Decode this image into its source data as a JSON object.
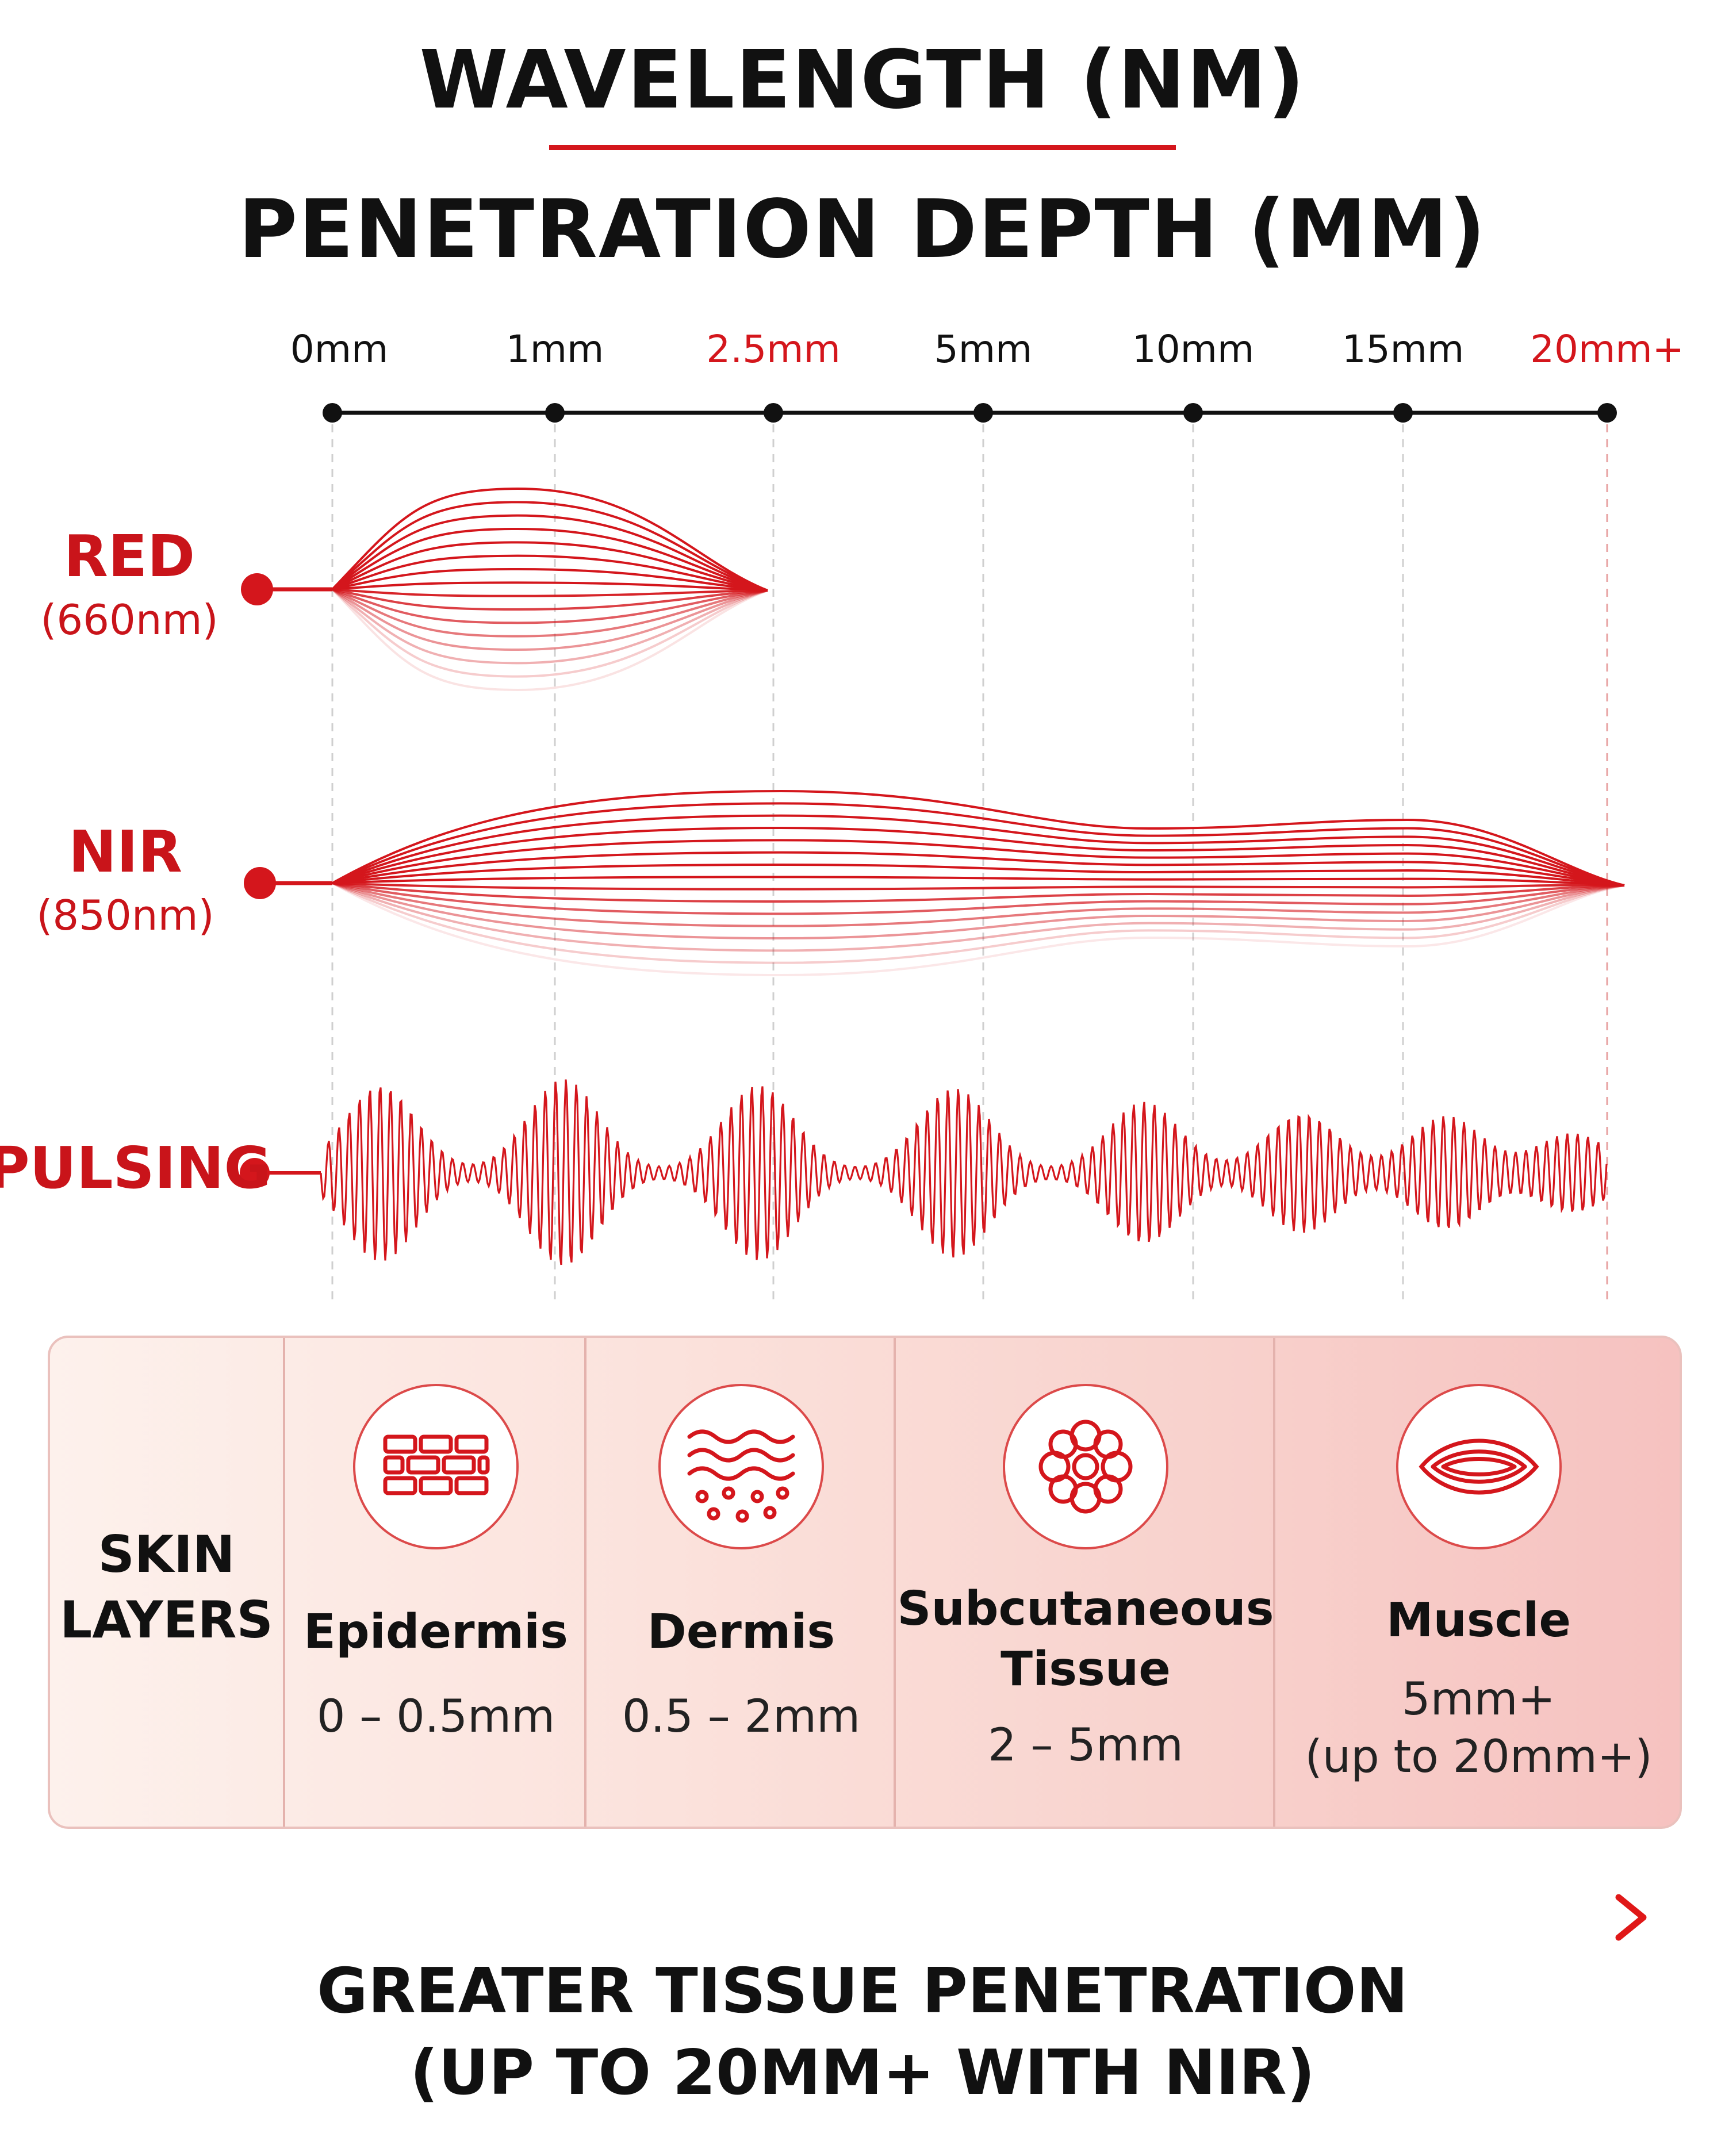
{
  "header": {
    "title": "WAVELENGTH (NM)",
    "subtitle": "PENETRATION DEPTH (MM)"
  },
  "colors": {
    "accent": "#d4161c",
    "axis": "#111111",
    "gradient_start": "#2a2aa8",
    "gradient_end": "#e01818"
  },
  "chart_data": {
    "type": "diagram",
    "depth_axis": {
      "ticks": [
        {
          "label": "0mm",
          "highlight": false
        },
        {
          "label": "1mm",
          "highlight": false
        },
        {
          "label": "2.5mm",
          "highlight": true
        },
        {
          "label": "5mm",
          "highlight": false
        },
        {
          "label": "10mm",
          "highlight": false
        },
        {
          "label": "15mm",
          "highlight": false
        },
        {
          "label": "20mm+",
          "highlight": true
        }
      ]
    },
    "series": [
      {
        "name": "RED",
        "sub": "(660nm)",
        "reaches_tick": "2.5mm"
      },
      {
        "name": "NIR",
        "sub": "(850nm)",
        "reaches_tick": "20mm+"
      },
      {
        "name": "PULSING",
        "sub": "",
        "reaches_tick": "20mm+"
      }
    ]
  },
  "skin_layers": {
    "heading_line1": "SKIN",
    "heading_line2": "LAYERS",
    "layers": [
      {
        "name": "Epidermis",
        "name2": "",
        "range": "0 – 0.5mm",
        "range2": "",
        "icon": "brick-cells-icon"
      },
      {
        "name": "Dermis",
        "name2": "",
        "range": "0.5 – 2mm",
        "range2": "",
        "icon": "wavy-tissue-icon"
      },
      {
        "name": "Subcutaneous",
        "name2": "Tissue",
        "range": "2 – 5mm",
        "range2": "",
        "icon": "fat-cells-icon"
      },
      {
        "name": "Muscle",
        "name2": "",
        "range": "5mm+",
        "range2": "(up to 20mm+)",
        "icon": "muscle-fiber-icon"
      }
    ]
  },
  "footer": {
    "line1": "GREATER TISSUE PENETRATION",
    "line2": "(UP TO 20MM+ WITH NIR)"
  }
}
